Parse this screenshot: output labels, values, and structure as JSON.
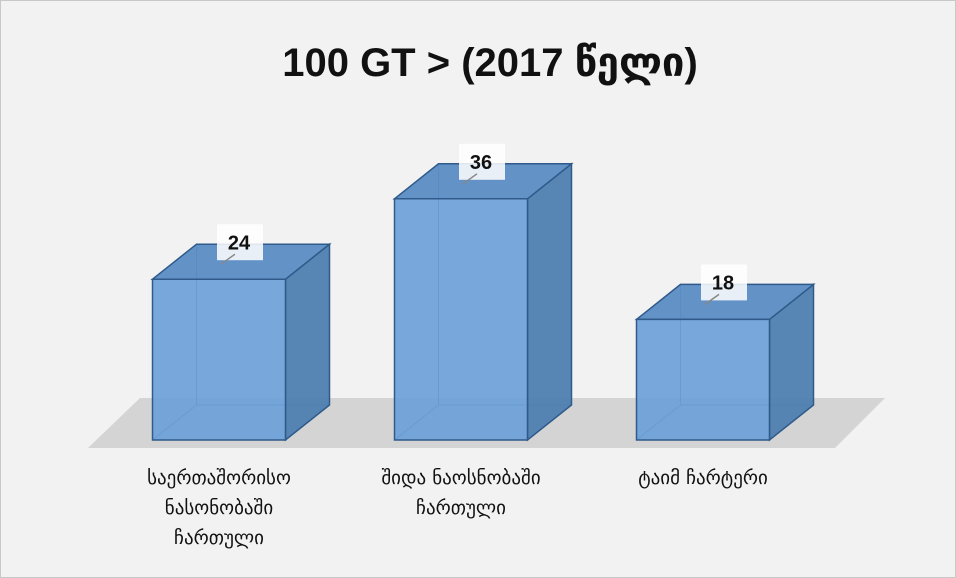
{
  "chart_data": {
    "type": "bar3d",
    "title": "100 GT > (2017 წელი)",
    "categories": [
      "საერთაშორისო ნასონობაში ჩართული",
      "შიდა ნაოსნობაში ჩართული",
      "ტაიმ ჩარტერი"
    ],
    "values": [
      24,
      36,
      18
    ],
    "color": "#6a9fd8",
    "ylim": [
      0,
      40
    ]
  }
}
